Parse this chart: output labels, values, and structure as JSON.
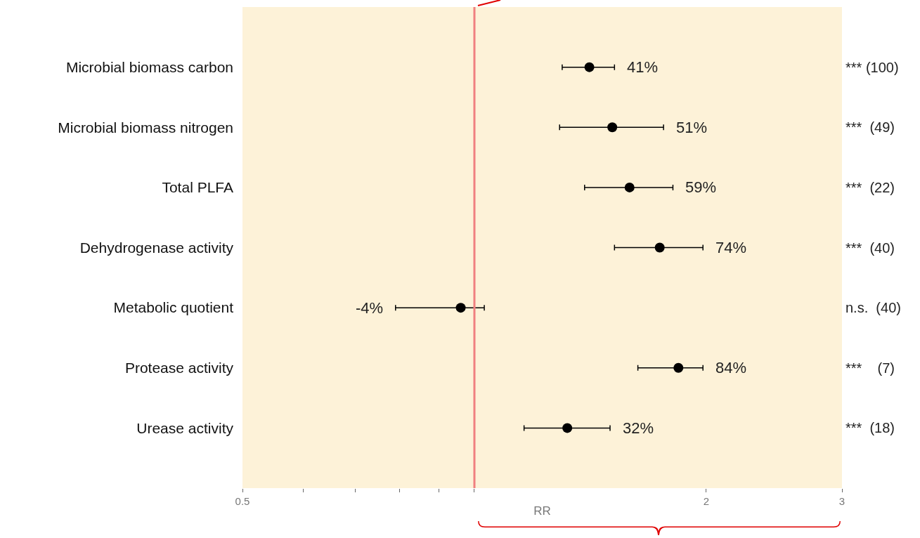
{
  "chart_data": {
    "type": "scatter",
    "orientation": "horizontal",
    "xlabel": "RR",
    "categories": [
      "Microbial biomass carbon",
      "Microbial biomass nitrogen",
      "Total PLFA",
      "Dehydrogenase activity",
      "Metabolic quotient",
      "Protease activity",
      "Urease activity"
    ],
    "values": [
      1.41,
      1.51,
      1.59,
      1.74,
      0.96,
      1.84,
      1.32
    ],
    "errors": [
      [
        1.3,
        1.52
      ],
      [
        1.29,
        1.76
      ],
      [
        1.39,
        1.81
      ],
      [
        1.52,
        1.98
      ],
      [
        0.79,
        1.03
      ],
      [
        1.63,
        1.98
      ],
      [
        1.16,
        1.5
      ]
    ],
    "color": "#000000",
    "marker": "circle",
    "log": "x",
    "xlim": [
      0.5,
      3
    ],
    "xticks": [
      0.5,
      {
        "value": 0.6,
        "label": null
      },
      {
        "value": 0.7,
        "label": null
      },
      {
        "value": 0.8,
        "label": null
      },
      {
        "value": 0.9,
        "label": null
      },
      {
        "value": 1,
        "label": null
      },
      2,
      3
    ],
    "ref_lines": [
      {
        "axis": "x",
        "value": 1,
        "color": "#f08080"
      }
    ],
    "annotations": [
      "41%",
      "51%",
      "59%",
      "74%",
      "-4%",
      "84%",
      "32%",
      "*** (100)",
      "***  (49)",
      "***  (22)",
      "***  (40)",
      "n.s.  (40)",
      "***    (7)",
      "***  (18)"
    ]
  }
}
